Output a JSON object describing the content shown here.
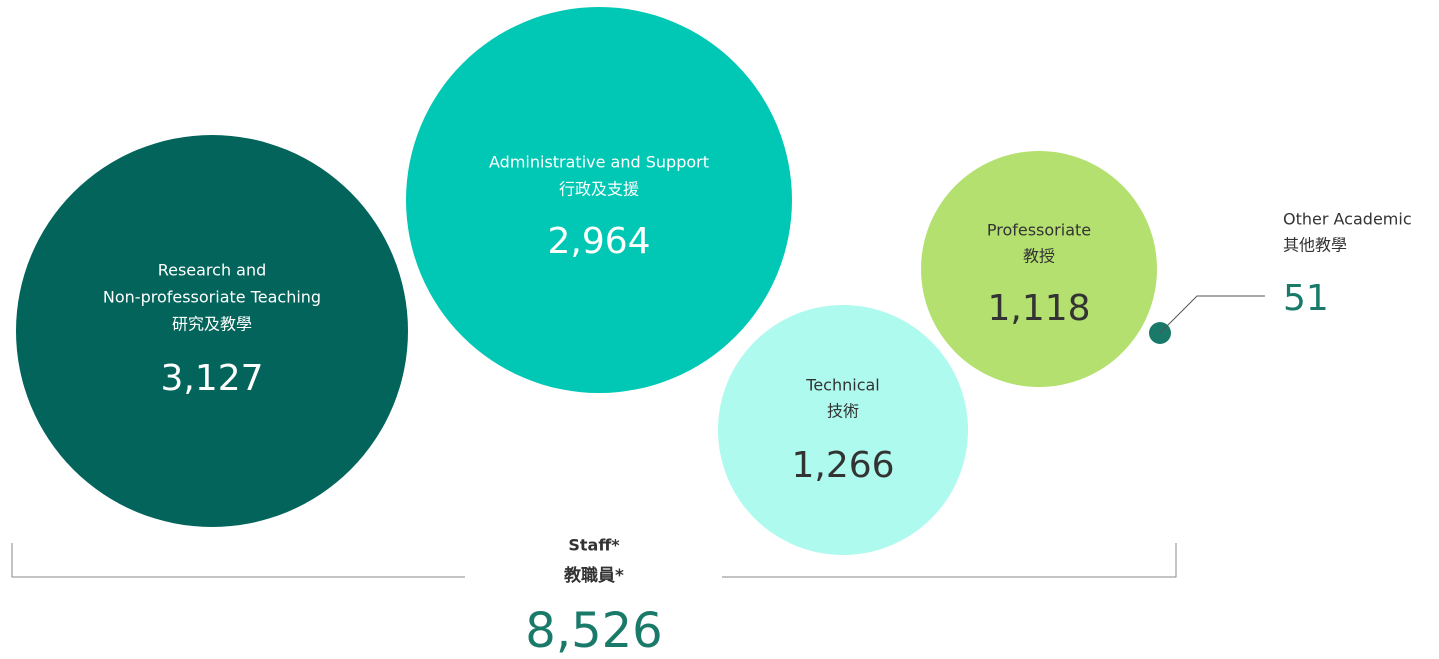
{
  "bubbles": [
    {
      "label_lines": [
        "Research and",
        "Non-professoriate Teaching",
        "研究及教學"
      ],
      "value": "3,127"
    },
    {
      "label_lines": [
        "Administrative and Support",
        "行政及支援"
      ],
      "value": "2,964"
    },
    {
      "label_lines": [
        "Technical",
        "技術"
      ],
      "value": "1,266"
    },
    {
      "label_lines": [
        "Professoriate",
        "教授"
      ],
      "value": "1,118"
    },
    {
      "label_lines": [
        "Other Academic",
        "其他教學"
      ],
      "value": "51"
    }
  ],
  "total": {
    "label_lines": [
      "Staff*",
      "教職員*"
    ],
    "value": "8,526"
  }
}
